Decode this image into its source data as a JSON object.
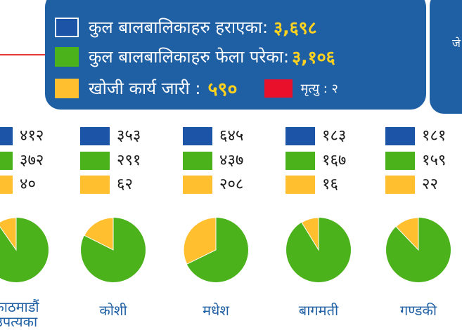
{
  "colors": {
    "lost": "#1c55a8",
    "found": "#4cb21c",
    "search": "#ffbf2e",
    "death": "#e8102a",
    "panel": "#1f5fa3"
  },
  "legend": {
    "lost_label": "कुल बालबालिकाहरु हराएका:",
    "lost_value": "३,६९८",
    "found_label": "कुल बालबालिकाहरु फेला परेका:",
    "found_value": "३,१०६",
    "search_label": "खोजी कार्य जारी :",
    "search_value": "५९०",
    "death_text": "मृत्यु : २"
  },
  "side_panel": {
    "text": "जे"
  },
  "chart_data": {
    "type": "pie",
    "series_keys": [
      "lost",
      "found",
      "search"
    ],
    "pies": [
      {
        "region": "काठमाडौं\nउपत्यका",
        "lost": 412,
        "found": 372,
        "search": 40,
        "lost_text": "४१२",
        "found_text": "३७२",
        "search_text": "४०"
      },
      {
        "region": "कोशी",
        "lost": 353,
        "found": 291,
        "search": 62,
        "lost_text": "३५३",
        "found_text": "२९१",
        "search_text": "६२"
      },
      {
        "region": "मधेश",
        "lost": 645,
        "found": 437,
        "search": 208,
        "lost_text": "६४५",
        "found_text": "४३७",
        "search_text": "२०८"
      },
      {
        "region": "बागमती",
        "lost": 183,
        "found": 167,
        "search": 16,
        "lost_text": "१८३",
        "found_text": "१६७",
        "search_text": "१६"
      },
      {
        "region": "गण्डकी",
        "lost": 181,
        "found": 159,
        "search": 22,
        "lost_text": "१८१",
        "found_text": "१५९",
        "search_text": "२२"
      }
    ]
  }
}
